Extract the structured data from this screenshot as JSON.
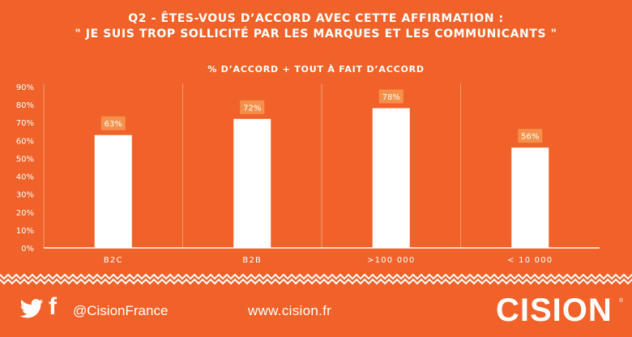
{
  "header": {
    "title_line1": "Q2 - ÊTES-VOUS D’ACCORD AVEC CETTE AFFIRMATION :",
    "title_line2": "\" JE SUIS TROP SOLLICITÉ PAR LES MARQUES ET LES COMMUNICANTS \"",
    "subtitle": "% D’ACCORD + TOUT À FAIT D’ACCORD"
  },
  "chart_data": {
    "type": "bar",
    "title": "Q2 - ÊTES-VOUS D’ACCORD AVEC CETTE AFFIRMATION : \" JE SUIS TROP SOLLICITÉ PAR LES MARQUES ET LES COMMUNICANTS \"",
    "subtitle": "% D’ACCORD + TOUT À FAIT D’ACCORD",
    "categories": [
      "B2C",
      "B2B",
      ">100 000",
      "< 10 000"
    ],
    "values": [
      63,
      72,
      78,
      56
    ],
    "data_labels": [
      "63%",
      "72%",
      "78%",
      "56%"
    ],
    "ylim": [
      0,
      90
    ],
    "yticks": [
      0,
      10,
      20,
      30,
      40,
      50,
      60,
      70,
      80,
      90
    ],
    "ytick_labels": [
      "0%",
      "10%",
      "20%",
      "30%",
      "40%",
      "50%",
      "60%",
      "70%",
      "80%",
      "90%"
    ],
    "xlabel": "",
    "ylabel": "",
    "grid": false,
    "legend": "none"
  },
  "footer": {
    "handle": "@CisionFrance",
    "website": "www.cision.fr",
    "logo": "CISION",
    "registered": "®",
    "icons": [
      "twitter-icon",
      "facebook-icon"
    ]
  },
  "colors": {
    "background": "#F0622A",
    "bar": "#FFFFFF",
    "label_box": "#F4904A",
    "divider": "#F59A70"
  }
}
